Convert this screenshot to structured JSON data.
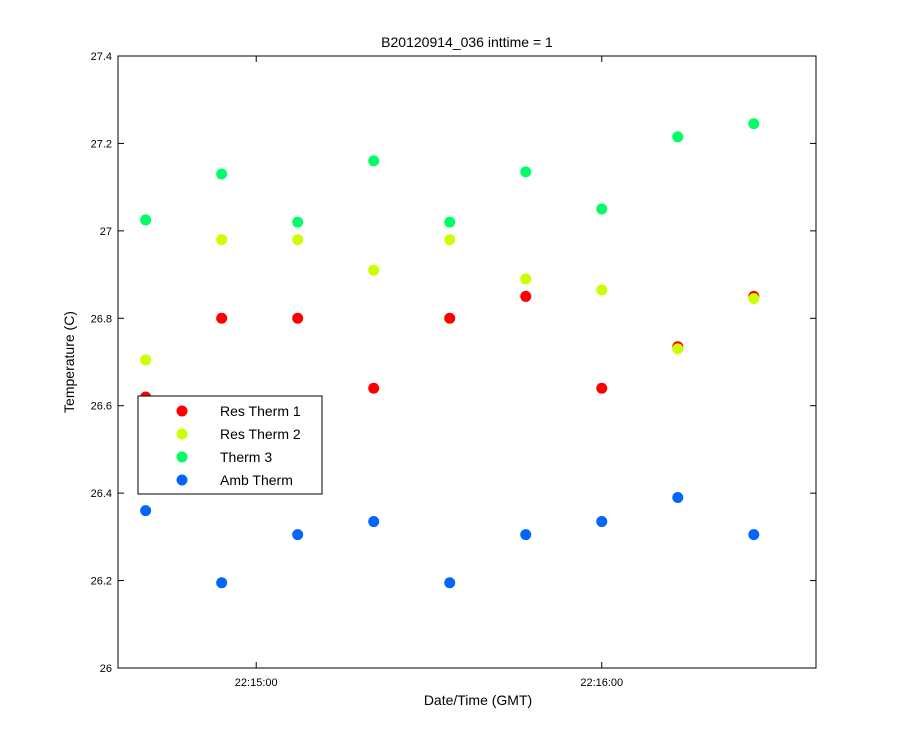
{
  "chart_data": {
    "type": "scatter",
    "title": "B20120914_036 inttime = 1",
    "xlabel": "Date/Time (GMT)",
    "ylabel": "Temperature (C)",
    "x_unit": "seconds",
    "xlim": [
      -20,
      81
    ],
    "ylim": [
      26,
      27.4
    ],
    "x_ticks": [
      {
        "value": 0,
        "label": "22:15:00"
      },
      {
        "value": 50,
        "label": "22:16:00"
      }
    ],
    "y_ticks": [
      {
        "value": 26,
        "label": "26"
      },
      {
        "value": 26.2,
        "label": "26.2"
      },
      {
        "value": 26.4,
        "label": "26.4"
      },
      {
        "value": 26.6,
        "label": "26.6"
      },
      {
        "value": 26.8,
        "label": "26.8"
      },
      {
        "value": 27,
        "label": "27"
      },
      {
        "value": 27.2,
        "label": "27.2"
      },
      {
        "value": 27.4,
        "label": "27.4"
      }
    ],
    "grid": false,
    "legend_position": "left-middle",
    "x": [
      -16,
      -5,
      6,
      17,
      28,
      39,
      50,
      61,
      72
    ],
    "series": [
      {
        "name": "Res Therm 1",
        "color": "#ff0000",
        "values": [
          26.62,
          26.8,
          26.8,
          26.64,
          26.8,
          26.85,
          26.64,
          26.735,
          26.85
        ]
      },
      {
        "name": "Res Therm 2",
        "color": "#ccff00",
        "values": [
          26.705,
          26.98,
          26.98,
          26.91,
          26.98,
          26.89,
          26.865,
          26.73,
          26.845
        ]
      },
      {
        "name": "Therm 3",
        "color": "#00ff66",
        "values": [
          27.025,
          27.13,
          27.02,
          27.16,
          27.02,
          27.135,
          27.05,
          27.215,
          27.245
        ]
      },
      {
        "name": "Amb Therm",
        "color": "#0066ff",
        "values": [
          26.36,
          26.195,
          26.305,
          26.335,
          26.195,
          26.305,
          26.335,
          26.39,
          26.305
        ]
      }
    ]
  }
}
